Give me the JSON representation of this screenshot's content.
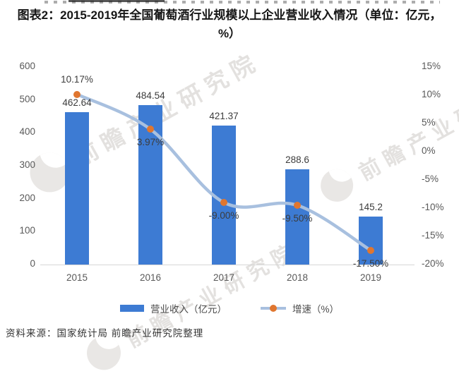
{
  "title": "图表2：2015-2019年全国葡萄酒行业规模以上企业营业收入情况（单位：亿元，%）",
  "source": "资料来源：国家统计局  前瞻产业研究院整理",
  "watermark_text": "前瞻产业研究院",
  "colors": {
    "bar": "#3D7BD3",
    "line": "#A8C0DF",
    "marker": "#E0762F",
    "axis_text": "#595959",
    "label_text": "#3C3C3C"
  },
  "chart_data": {
    "type": "bar+line combo",
    "title": "图表2：2015-2019年全国葡萄酒行业规模以上企业营业收入情况（单位：亿元，%）",
    "categories": [
      "2015",
      "2016",
      "2017",
      "2018",
      "2019"
    ],
    "series": [
      {
        "name": "营业收入（亿元）",
        "type": "bar",
        "axis": "left",
        "values": [
          462.64,
          484.54,
          421.37,
          288.6,
          145.2
        ],
        "labels": [
          "462.64",
          "484.54",
          "421.37",
          "288.6",
          "145.2"
        ],
        "color": "#3D7BD3"
      },
      {
        "name": "增速（%）",
        "type": "line",
        "axis": "right",
        "values": [
          10.17,
          3.97,
          -9.0,
          -9.5,
          -17.5
        ],
        "labels": [
          "10.17%",
          "3.97%",
          "-9.00%",
          "-9.50%",
          "-17.50%"
        ],
        "label_side": [
          "above",
          "below",
          "below",
          "below",
          "below"
        ],
        "line_color": "#A8C0DF",
        "marker_color": "#E0762F"
      }
    ],
    "left_axis": {
      "min": 0,
      "max": 600,
      "ticks": [
        "600",
        "500",
        "400",
        "300",
        "200",
        "100",
        "0"
      ]
    },
    "right_axis": {
      "min": -20,
      "max": 15,
      "ticks": [
        "15%",
        "10%",
        "5%",
        "0%",
        "-5%",
        "-10%",
        "-15%",
        "-20%"
      ]
    },
    "grid": false,
    "legend_position": "bottom"
  },
  "legend": {
    "items": [
      {
        "label": "营业收入（亿元）",
        "swatch": "bar"
      },
      {
        "label": "增速（%）",
        "swatch": "line-dot"
      }
    ]
  }
}
